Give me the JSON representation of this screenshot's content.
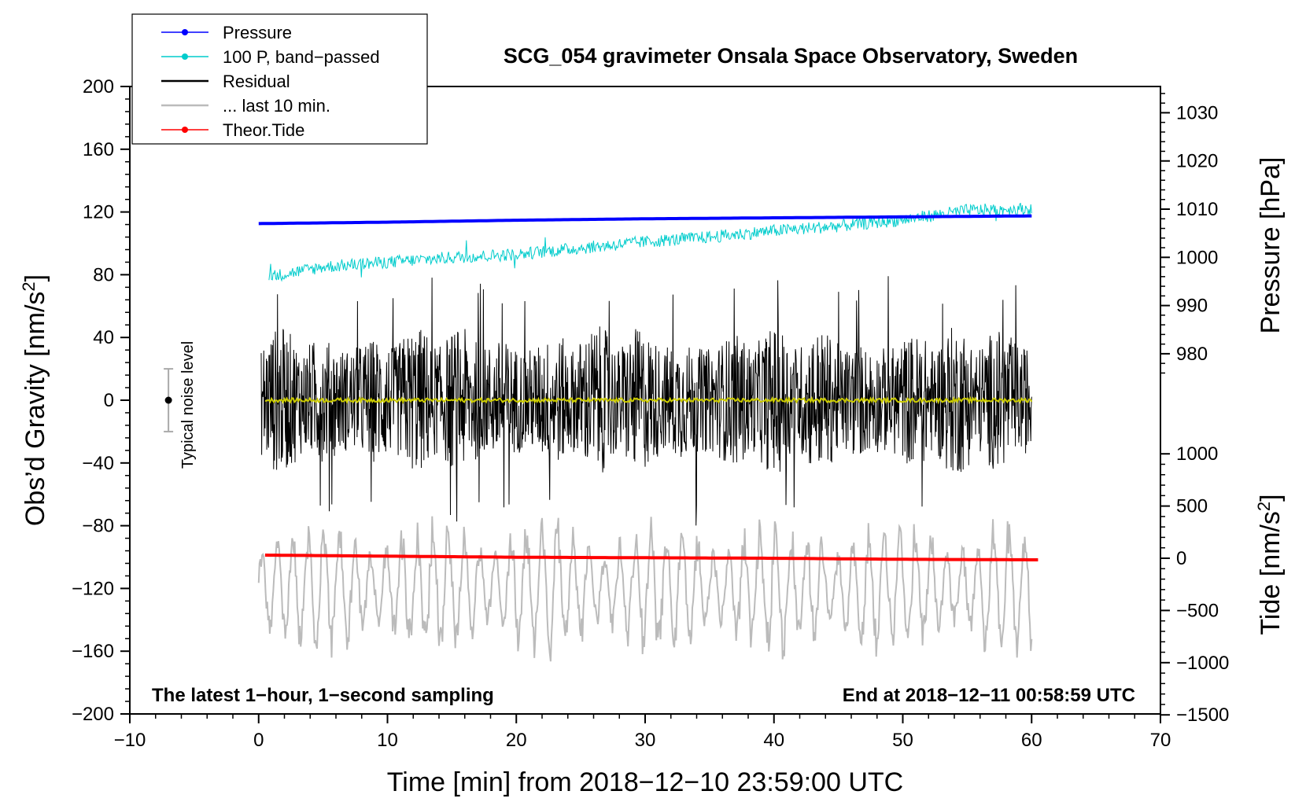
{
  "chart_data": {
    "type": "line",
    "title": "SCG_054 gravimeter Onsala Space Observatory, Sweden",
    "xlabel": "Time [min] from 2018−12−10 23:59:00 UTC",
    "ylabel_left": "Obs’d Gravity [nm/s²]",
    "ylabel_left_text": "Obs’d Gravity [nm/s",
    "ylabel_left_sup": "2",
    "ylabel_left_close": "]",
    "ylabel_pressure": "Pressure [hPa]",
    "ylabel_tide": "Tide [nm/s²]",
    "ylabel_tide_text": "Tide [nm/s",
    "ylabel_tide_sup": "2",
    "ylabel_tide_close": "]",
    "xlim": [
      -10,
      70
    ],
    "ylim_left": [
      -200,
      200
    ],
    "pressure_range": [
      975,
      1035
    ],
    "tide_range": [
      -1500,
      1000
    ],
    "x_ticks": [
      "−10",
      "0",
      "10",
      "20",
      "30",
      "40",
      "50",
      "60",
      "70"
    ],
    "x_tick_values": [
      -10,
      0,
      10,
      20,
      30,
      40,
      50,
      60,
      70
    ],
    "y_ticks_left": [
      "200",
      "160",
      "120",
      "80",
      "40",
      "0",
      "−40",
      "−80",
      "−120",
      "−160",
      "−200"
    ],
    "y_tick_values_left": [
      200,
      160,
      120,
      80,
      40,
      0,
      -40,
      -80,
      -120,
      -160,
      -200
    ],
    "pressure_ticks": [
      "1030",
      "1020",
      "1010",
      "1000",
      "990",
      "980"
    ],
    "pressure_tick_values": [
      1030,
      1020,
      1010,
      1000,
      990,
      980
    ],
    "tide_ticks": [
      "1000",
      "500",
      "0",
      "−500",
      "−1000",
      "−1500"
    ],
    "tide_tick_values": [
      1000,
      500,
      0,
      -500,
      -1000,
      -1500
    ],
    "legend": [
      {
        "label": "Pressure",
        "color": "#0000ff",
        "marker": true
      },
      {
        "label": "100 P, band−passed",
        "color": "#00cccc",
        "marker": true
      },
      {
        "label": "Residual",
        "color": "#000000",
        "marker": false
      },
      {
        "label": "... last 10 min.",
        "color": "#bbbbbb",
        "marker": false
      },
      {
        "label": "Theor.Tide",
        "color": "#ff0000",
        "marker": true
      }
    ],
    "series": [
      {
        "name": "Pressure",
        "axis": "pressure",
        "color": "#0000ff",
        "x": [
          0,
          10,
          20,
          30,
          40,
          50,
          60
        ],
        "values": [
          1007.0,
          1007.3,
          1007.7,
          1008.0,
          1008.2,
          1008.4,
          1008.6
        ]
      },
      {
        "name": "100 P, band−passed",
        "axis": "left",
        "color": "#00cccc",
        "x": [
          1,
          5,
          10,
          15,
          20,
          25,
          30,
          35,
          40,
          45,
          50,
          55,
          60
        ],
        "values": [
          79,
          85,
          88,
          91,
          93,
          97,
          101,
          104,
          108,
          111,
          115,
          121,
          122
        ],
        "noise_amplitude": 4,
        "range_x": [
          0.8,
          60
        ]
      },
      {
        "name": "Residual",
        "axis": "left",
        "color": "#000000",
        "x": [
          0,
          60
        ],
        "values": [
          0,
          0
        ],
        "typical_amplitude": 30,
        "peak_amplitude": 80,
        "range_x": [
          0.2,
          60
        ]
      },
      {
        "name": "... last 10 min.",
        "axis": "left",
        "color": "#bbbbbb",
        "x": [
          0,
          60
        ],
        "values": [
          -120,
          -120
        ],
        "typical_amplitude": 35,
        "peak_amplitude": 75,
        "range_x": [
          0,
          60
        ]
      },
      {
        "name": "Residual smoothed",
        "axis": "left",
        "color": "#cccc00",
        "x": [
          0.5,
          60
        ],
        "values": [
          0,
          0
        ]
      },
      {
        "name": "Theor.Tide",
        "axis": "tide",
        "color": "#ff0000",
        "x": [
          0.5,
          10,
          20,
          30,
          40,
          50,
          60.5
        ],
        "values": [
          30,
          20,
          10,
          5,
          0,
          -10,
          -15
        ]
      }
    ],
    "noise_bar": {
      "label": "Typical noise level",
      "x": -7,
      "center": 0,
      "low": -20,
      "high": 20
    },
    "annotations": {
      "bottom_left": "The latest 1−hour, 1−second sampling",
      "bottom_right": "End at 2018−12−11 00:58:59 UTC"
    }
  }
}
